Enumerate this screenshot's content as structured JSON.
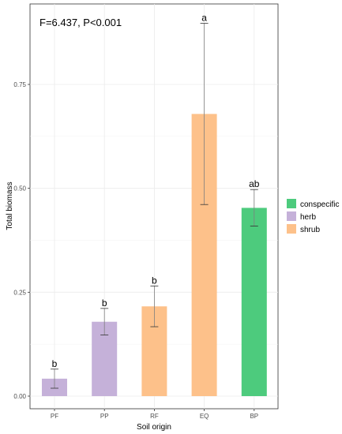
{
  "chart_data": {
    "type": "bar",
    "annotation": "F=6.437, P<0.001",
    "xlabel": "Soil origin",
    "ylabel": "Total biomass",
    "ylim": [
      0,
      0.79
    ],
    "yticks": [
      0,
      0.25,
      0.5,
      0.75
    ],
    "ytick_labels": [
      "0.00",
      "0.25",
      "0.50",
      "0.75"
    ],
    "grid": true,
    "legend_position": "right",
    "categories": [
      "PF",
      "PP",
      "RF",
      "EQ",
      "BP"
    ],
    "bars": [
      {
        "category": "PF",
        "value": 0.042,
        "error_low": 0.019,
        "error_high": 0.065,
        "group": "herb",
        "letter": "b"
      },
      {
        "category": "PP",
        "value": 0.179,
        "error_low": 0.147,
        "error_high": 0.211,
        "group": "herb",
        "letter": "b"
      },
      {
        "category": "RF",
        "value": 0.216,
        "error_low": 0.167,
        "error_high": 0.265,
        "group": "shrub",
        "letter": "b"
      },
      {
        "category": "EQ",
        "value": 0.679,
        "error_low": 0.461,
        "error_high": 0.897,
        "group": "shrub",
        "letter": "a"
      },
      {
        "category": "BP",
        "value": 0.453,
        "error_low": 0.409,
        "error_high": 0.497,
        "group": "conspecific",
        "letter": "ab"
      }
    ],
    "legend": [
      {
        "label": "conspecific",
        "color": "#4dcb7d"
      },
      {
        "label": "herb",
        "color": "#c5b1d9"
      },
      {
        "label": "shrub",
        "color": "#fdc18a"
      }
    ]
  }
}
